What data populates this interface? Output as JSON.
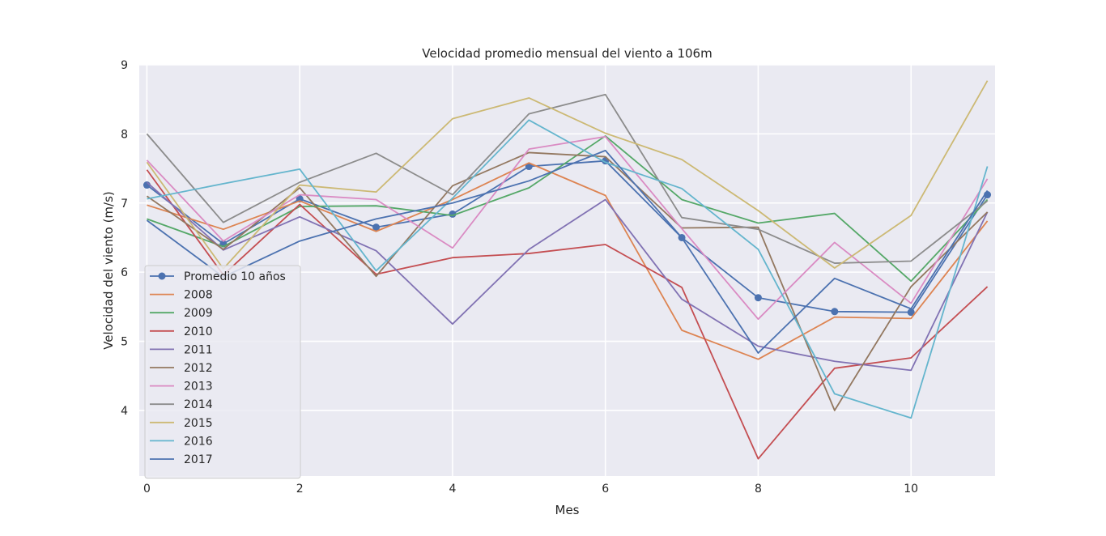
{
  "chart_data": {
    "type": "line",
    "title": "Velocidad  promedio mensual del viento  a 106m",
    "xlabel": "Mes",
    "ylabel": "Velocidad del viento (m/s)",
    "xlim": [
      -0.1,
      11.1
    ],
    "ylim": [
      3.05,
      9.0
    ],
    "xticks": [
      0,
      2,
      4,
      6,
      8,
      10
    ],
    "yticks": [
      4,
      5,
      6,
      7,
      8,
      9
    ],
    "grid": true,
    "legend_position": "lower-left",
    "x": [
      0,
      1,
      2,
      3,
      4,
      5,
      6,
      7,
      8,
      9,
      10,
      11
    ],
    "series": [
      {
        "name": "Promedio 10 años",
        "color": "#4c72b0",
        "marker": true,
        "values": [
          7.26,
          6.41,
          7.06,
          6.65,
          6.84,
          7.53,
          7.61,
          6.5,
          5.63,
          5.43,
          5.42,
          7.12
        ]
      },
      {
        "name": "2008",
        "color": "#dd8452",
        "values": [
          6.97,
          6.62,
          7.03,
          6.59,
          7.05,
          7.58,
          7.11,
          5.16,
          4.74,
          5.35,
          5.33,
          6.74
        ]
      },
      {
        "name": "2009",
        "color": "#55a868",
        "values": [
          6.77,
          6.37,
          6.95,
          6.96,
          6.82,
          7.22,
          7.97,
          7.05,
          6.71,
          6.85,
          5.87,
          7.05
        ]
      },
      {
        "name": "2010",
        "color": "#c44e52",
        "values": [
          7.48,
          5.96,
          6.98,
          5.97,
          6.21,
          6.27,
          6.4,
          5.78,
          3.3,
          4.61,
          4.76,
          5.79
        ]
      },
      {
        "name": "2011",
        "color": "#8172b3",
        "values": [
          7.3,
          6.32,
          6.8,
          6.31,
          5.25,
          6.33,
          7.05,
          5.61,
          4.93,
          4.71,
          4.58,
          6.87
        ]
      },
      {
        "name": "2012",
        "color": "#937860",
        "values": [
          7.1,
          6.33,
          7.22,
          5.94,
          7.25,
          7.73,
          7.67,
          6.64,
          6.65,
          4.0,
          5.79,
          6.87
        ]
      },
      {
        "name": "2013",
        "color": "#da8bc3",
        "values": [
          7.62,
          6.45,
          7.12,
          7.05,
          6.35,
          7.78,
          7.96,
          6.63,
          5.32,
          6.43,
          5.55,
          7.35
        ]
      },
      {
        "name": "2014",
        "color": "#8c8c8c",
        "values": [
          8.0,
          6.72,
          7.3,
          7.72,
          7.12,
          8.29,
          8.57,
          6.79,
          6.62,
          6.13,
          6.16,
          7.03
        ]
      },
      {
        "name": "2015",
        "color": "#ccb974",
        "values": [
          7.59,
          6.05,
          7.26,
          7.16,
          8.22,
          8.52,
          8.01,
          7.63,
          6.89,
          6.06,
          6.82,
          8.77
        ]
      },
      {
        "name": "2016",
        "color": "#64b5cd",
        "values": [
          7.06,
          7.28,
          7.49,
          6.02,
          7.07,
          8.2,
          7.59,
          7.21,
          6.33,
          4.24,
          3.89,
          7.53
        ]
      },
      {
        "name": "2017",
        "color": "#4c72b0",
        "values": [
          6.75,
          5.93,
          6.45,
          6.77,
          7.0,
          7.32,
          7.76,
          6.5,
          4.83,
          5.91,
          5.47,
          7.18
        ]
      }
    ]
  }
}
